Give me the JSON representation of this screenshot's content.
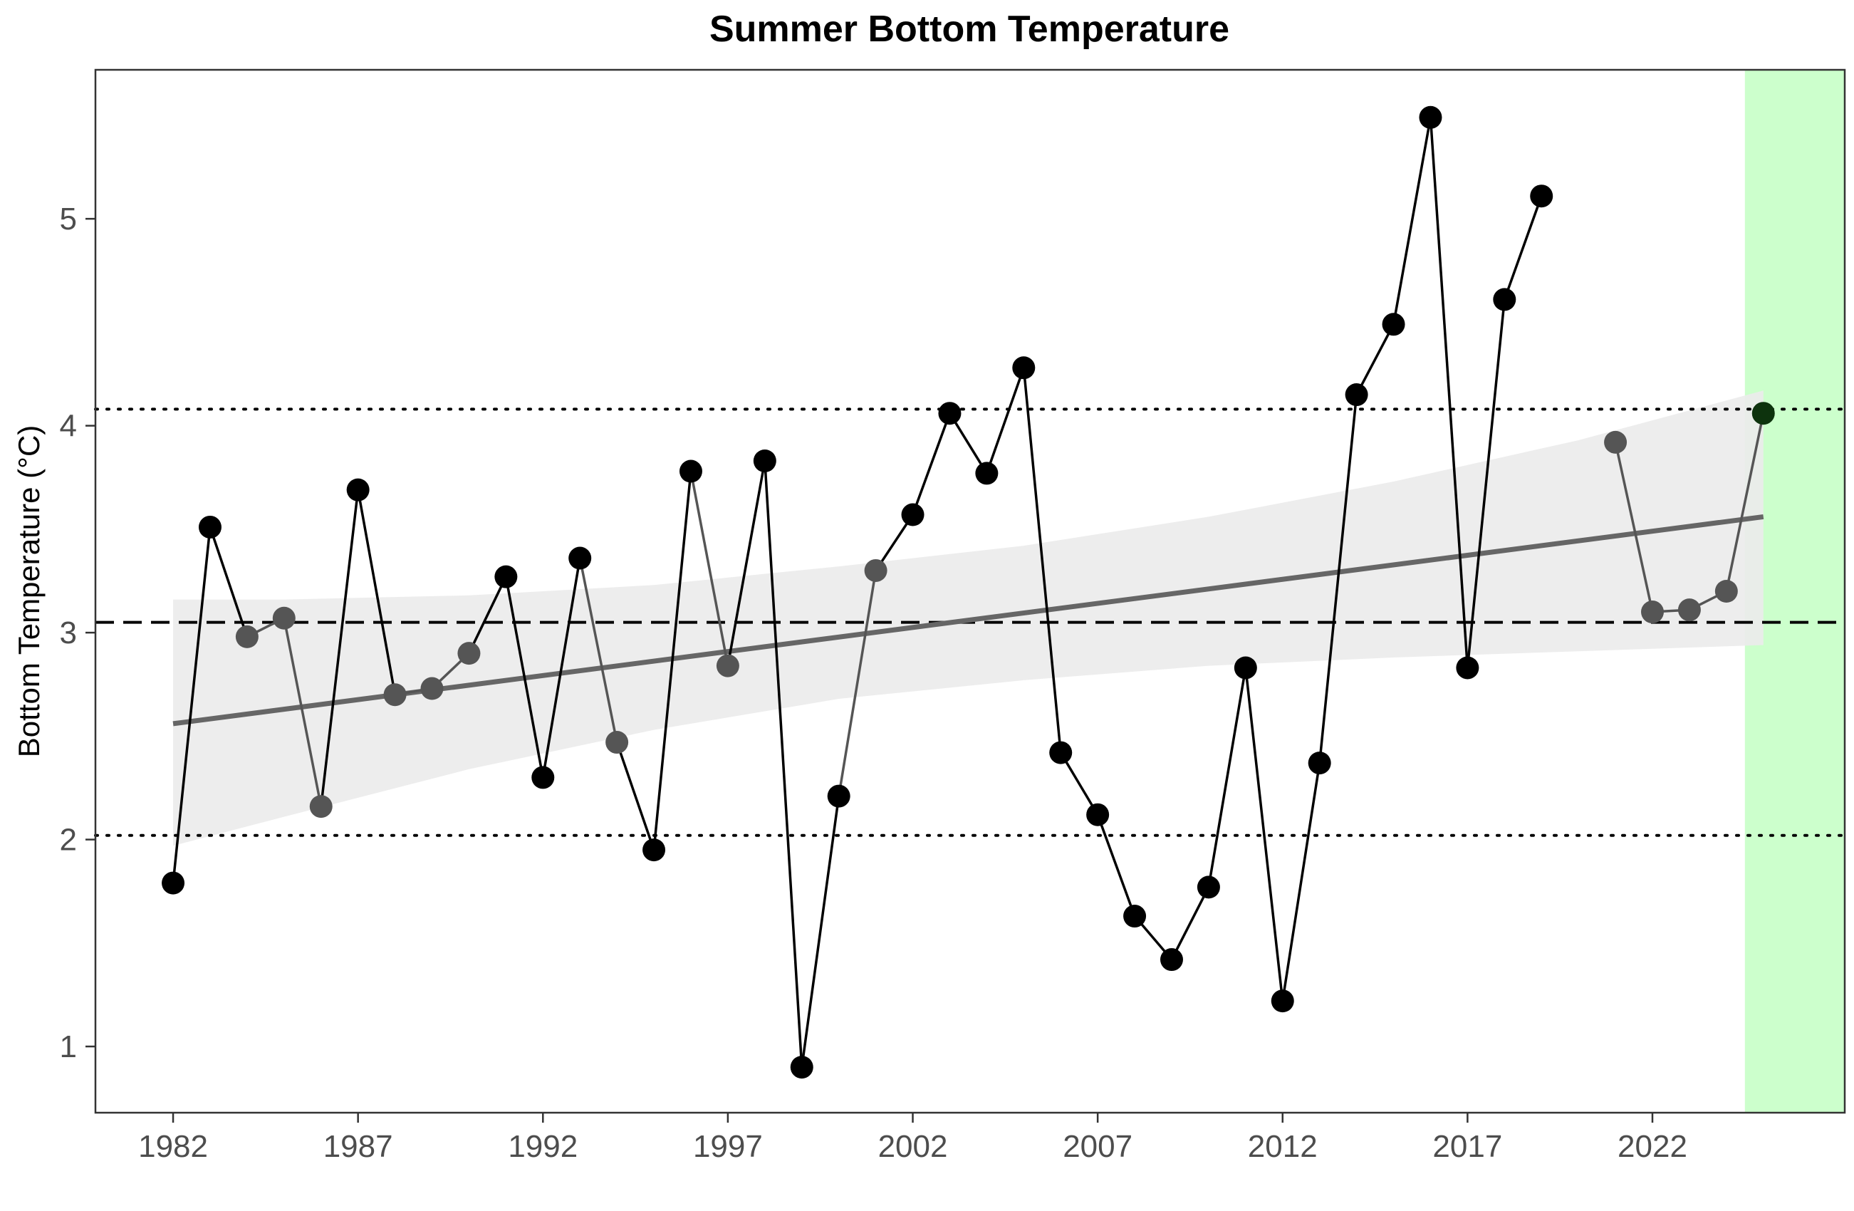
{
  "chart_data": {
    "type": "line",
    "title": "Summer Bottom Temperature",
    "xlabel": "",
    "ylabel": "Bottom Temperature (°C)",
    "xlim": [
      1979.9,
      2027.2
    ],
    "ylim": [
      0.68,
      5.72
    ],
    "x_ticks": [
      1982,
      1987,
      1992,
      1997,
      2002,
      2007,
      2012,
      2017,
      2022
    ],
    "y_ticks": [
      1,
      2,
      3,
      4,
      5
    ],
    "grid": false,
    "legend": "none",
    "mean": 3.05,
    "upper_sd": 4.08,
    "lower_sd": 2.02,
    "trend": {
      "x": [
        1982,
        2025
      ],
      "y": [
        2.56,
        3.56
      ]
    },
    "confidence_band": {
      "x": [
        1982,
        1985,
        1990,
        1995,
        2000,
        2005,
        2010,
        2015,
        2020,
        2025
      ],
      "lower": [
        1.97,
        2.11,
        2.34,
        2.53,
        2.68,
        2.77,
        2.84,
        2.88,
        2.91,
        2.94
      ],
      "upper": [
        3.16,
        3.16,
        3.18,
        3.23,
        3.32,
        3.42,
        3.56,
        3.73,
        3.93,
        4.17
      ]
    },
    "highlight": {
      "x_start": 2024.5,
      "x_end": 2027.2,
      "color": "#ccffcc"
    },
    "series": [
      {
        "x": [
          1982,
          1983,
          1984,
          1985,
          1986,
          1987,
          1988,
          1989,
          1990,
          1991,
          1992,
          1993,
          1994,
          1995,
          1996,
          1997,
          1998,
          1999,
          2000,
          2001,
          2002,
          2003,
          2004,
          2005,
          2006,
          2007,
          2008,
          2009,
          2010,
          2011,
          2012,
          2013,
          2014,
          2015,
          2016,
          2017,
          2018,
          2019,
          2020,
          2021,
          2022,
          2023,
          2024,
          2025
        ],
        "y": [
          1.79,
          3.51,
          2.98,
          3.07,
          2.16,
          3.69,
          2.7,
          2.73,
          2.9,
          3.27,
          2.3,
          3.36,
          2.47,
          1.95,
          3.78,
          2.84,
          3.83,
          0.9,
          2.21,
          3.3,
          3.57,
          4.06,
          3.77,
          4.28,
          2.42,
          2.12,
          1.63,
          1.42,
          1.77,
          2.83,
          1.22,
          2.37,
          4.15,
          4.49,
          5.49,
          2.83,
          4.61,
          5.11,
          null,
          3.92,
          3.1,
          3.11,
          3.2,
          4.06
        ]
      }
    ]
  },
  "colors": {
    "line": "#000000",
    "interpolated_line": "#555555",
    "interpolated_point": "#555555",
    "trend": "#666666",
    "band": "#ebebeb",
    "highlight": "#ccffcc",
    "axis": "#333333"
  }
}
